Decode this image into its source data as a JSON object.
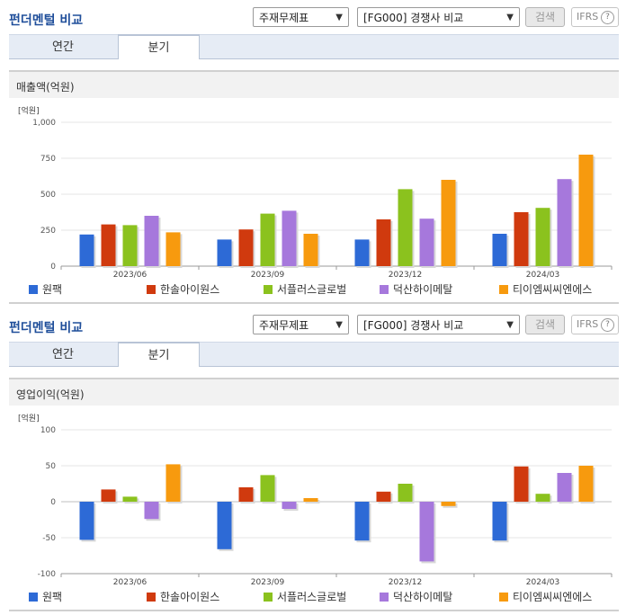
{
  "title": "펀더멘털 비교",
  "sel1": "주재무제표",
  "sel2": "[FG000] 경쟁사 비교",
  "search": "검색",
  "ifrs": "IFRS",
  "ifrs_q": "?",
  "tab_annual": "연간",
  "tab_quarter": "분기",
  "colors": [
    "#2d6ad6",
    "#d03a0e",
    "#8bc21e",
    "#a678dc",
    "#f79a0e"
  ],
  "chart_data": [
    {
      "type": "bar",
      "title": "매출액(억원)",
      "unit": "[억원]",
      "categories": [
        "2023/06",
        "2023/09",
        "2023/12",
        "2024/03"
      ],
      "ylim": [
        0,
        1000
      ],
      "yticks": [
        0,
        250,
        500,
        750,
        1000
      ],
      "ytick_labels": [
        "0",
        "250",
        "500",
        "750",
        "1,000"
      ],
      "series": [
        {
          "name": "원팩",
          "values": [
            220,
            185,
            185,
            225
          ]
        },
        {
          "name": "한솔아이원스",
          "values": [
            290,
            255,
            325,
            375
          ]
        },
        {
          "name": "서플러스글로벌",
          "values": [
            285,
            365,
            535,
            405
          ]
        },
        {
          "name": "덕산하이메탈",
          "values": [
            350,
            385,
            330,
            605
          ]
        },
        {
          "name": "티이엠씨씨엔에스",
          "values": [
            235,
            225,
            600,
            775
          ]
        }
      ]
    },
    {
      "type": "bar",
      "title": "영업이익(억원)",
      "unit": "[억원]",
      "categories": [
        "2023/06",
        "2023/09",
        "2023/12",
        "2024/03"
      ],
      "ylim": [
        -100,
        100
      ],
      "yticks": [
        -100,
        -50,
        0,
        50,
        100
      ],
      "ytick_labels": [
        "-100",
        "-50",
        "0",
        "50",
        "100"
      ],
      "series": [
        {
          "name": "원팩",
          "values": [
            -53,
            -66,
            -54,
            -54
          ]
        },
        {
          "name": "한솔아이원스",
          "values": [
            17,
            20,
            14,
            49
          ]
        },
        {
          "name": "서플러스글로벌",
          "values": [
            7,
            37,
            25,
            11
          ]
        },
        {
          "name": "덕산하이메탈",
          "values": [
            -24,
            -10,
            -83,
            40
          ]
        },
        {
          "name": "티이엠씨씨엔에스",
          "values": [
            52,
            5,
            -6,
            50
          ]
        }
      ]
    }
  ]
}
